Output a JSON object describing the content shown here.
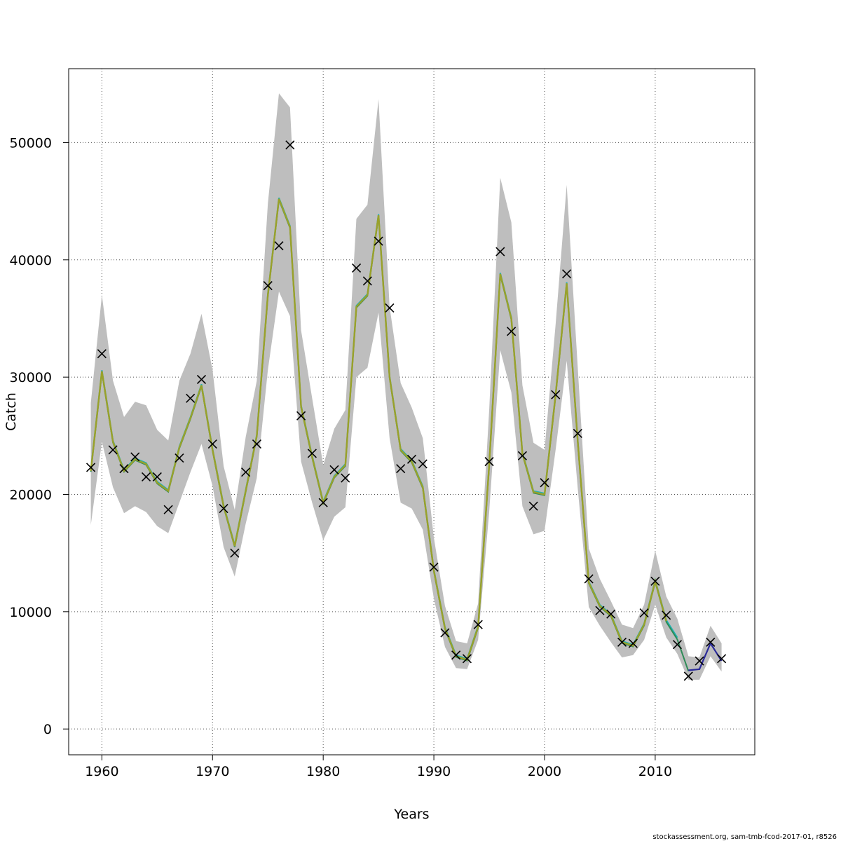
{
  "chart_data": {
    "type": "line",
    "title": "",
    "xlabel": "Years",
    "ylabel": "Catch",
    "xlim": [
      1957,
      2019
    ],
    "ylim": [
      -2200,
      56300
    ],
    "x_ticks": [
      1960,
      1970,
      1980,
      1990,
      2000,
      2010
    ],
    "y_ticks": [
      0,
      10000,
      20000,
      30000,
      40000,
      50000
    ],
    "grid": true,
    "legend": "none",
    "colors": {
      "band": "#bebebe",
      "line_main": "#9aa12a",
      "line_teal": "#20b2b2",
      "line_green": "#2e8b57",
      "line_blue": "#2a2a9a",
      "markers": "#000000",
      "grid": "#555555"
    },
    "years": [
      1959,
      1960,
      1961,
      1962,
      1963,
      1964,
      1965,
      1966,
      1967,
      1968,
      1969,
      1970,
      1971,
      1972,
      1973,
      1974,
      1975,
      1976,
      1977,
      1978,
      1979,
      1980,
      1981,
      1982,
      1983,
      1984,
      1985,
      1986,
      1987,
      1988,
      1989,
      1990,
      1991,
      1992,
      1993,
      1994,
      1995,
      1996,
      1997,
      1998,
      1999,
      2000,
      2001,
      2002,
      2003,
      2004,
      2005,
      2006,
      2007,
      2008,
      2009,
      2010,
      2011,
      2012,
      2013,
      2014,
      2015,
      2016
    ],
    "observed_catch": [
      22300,
      32000,
      23800,
      22200,
      23200,
      21500,
      21500,
      18700,
      23100,
      28200,
      29800,
      24300,
      18800,
      15000,
      21900,
      24300,
      37800,
      41200,
      49800,
      26700,
      23500,
      19300,
      22100,
      21400,
      39300,
      38200,
      41600,
      35900,
      22200,
      23000,
      22600,
      13800,
      8200,
      6300,
      6000,
      8900,
      22800,
      40700,
      33900,
      23300,
      19000,
      21000,
      28500,
      38800,
      25200,
      12800,
      10100,
      9800,
      7400,
      7300,
      9900,
      12600,
      9700,
      7200,
      4500,
      5800,
      7400,
      6000
    ],
    "series": [
      {
        "values": [
          22000,
          30500,
          24500,
          22000,
          23000,
          22600,
          21000,
          20300,
          24000,
          26500,
          29300,
          23800,
          19000,
          15600,
          20300,
          25000,
          37000,
          45200,
          42800,
          27500,
          23200,
          19300,
          21500,
          22500,
          36000,
          37000,
          43800,
          30000,
          23800,
          22800,
          20600,
          13500,
          8600,
          6200,
          5900,
          8700,
          22500,
          38800,
          35000,
          23500,
          20200,
          20000,
          28500,
          38000,
          24500,
          12500,
          10500,
          9700,
          7400,
          7100,
          8900,
          12600,
          9200,
          7700,
          5000,
          5100,
          7300,
          5800
        ],
        "lower": [
          17400,
          24500,
          20600,
          18400,
          19000,
          18500,
          17300,
          16700,
          19300,
          21900,
          24300,
          20700,
          15500,
          13000,
          17500,
          21400,
          30600,
          37300,
          35200,
          22800,
          19300,
          16100,
          18100,
          18900,
          30000,
          30800,
          35500,
          24800,
          19300,
          18800,
          17000,
          11100,
          7000,
          5200,
          5100,
          7600,
          18500,
          32300,
          28700,
          19000,
          16600,
          16900,
          23800,
          31400,
          20500,
          10400,
          8800,
          7400,
          6100,
          6300,
          7600,
          10600,
          7800,
          6400,
          4200,
          4200,
          6200,
          4900
        ],
        "upper": [
          27800,
          37000,
          29700,
          26600,
          27900,
          27600,
          25500,
          24600,
          29700,
          32000,
          35400,
          30600,
          22400,
          18700,
          24900,
          29700,
          44800,
          54200,
          53000,
          34000,
          28200,
          22500,
          25600,
          27200,
          43500,
          44700,
          53700,
          36000,
          29500,
          27400,
          24800,
          16300,
          10500,
          7500,
          7300,
          10700,
          27200,
          47000,
          43200,
          29300,
          24400,
          23800,
          34500,
          46400,
          30800,
          15400,
          12800,
          10900,
          8900,
          8600,
          10600,
          15200,
          11300,
          9400,
          6200,
          6100,
          8800,
          7300
        ]
      }
    ],
    "footer": "stockassessment.org, sam-tmb-fcod-2017-01, r8526"
  }
}
